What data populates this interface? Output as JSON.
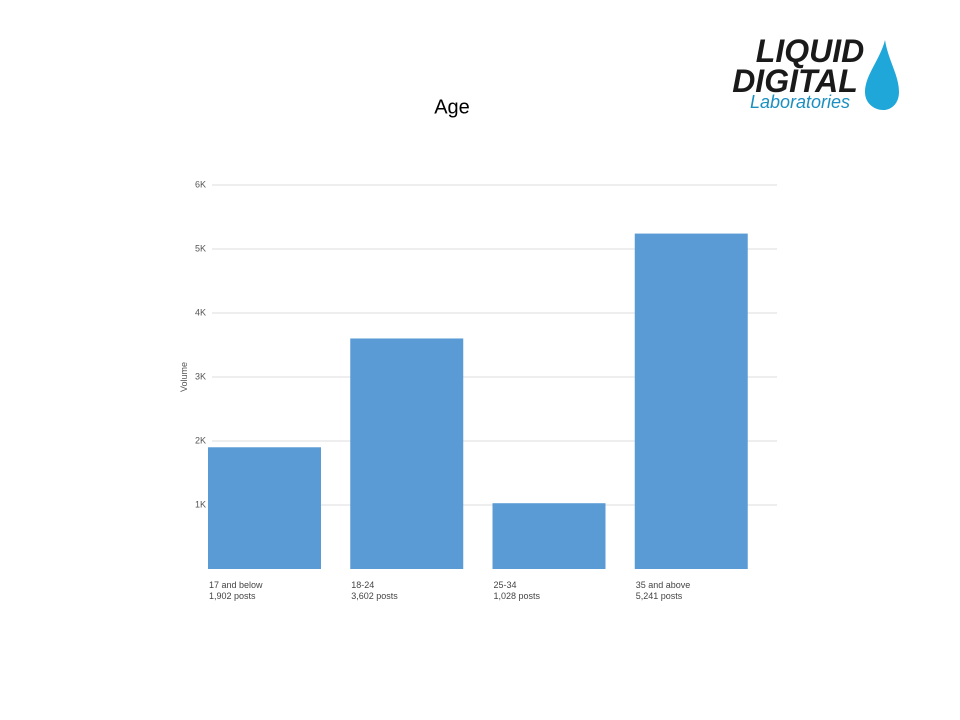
{
  "logo": {
    "line1": "LIQUID",
    "line2": "DIGITAL",
    "line3": "Laboratories"
  },
  "chart_data": {
    "type": "bar",
    "title": "Age",
    "y_label": "Volume",
    "categories": [
      "17 and below",
      "18-24",
      "25-34",
      "35 and above"
    ],
    "values": [
      1902,
      3602,
      1028,
      5241
    ],
    "value_labels": [
      "1,902 posts",
      "3,602 posts",
      "1,028 posts",
      "5,241 posts"
    ],
    "color": "#5b9bd5",
    "ylim": [
      0,
      6000
    ],
    "yticks": [
      {
        "value": 1000,
        "label": "1K"
      },
      {
        "value": 2000,
        "label": "2K"
      },
      {
        "value": 3000,
        "label": "3K"
      },
      {
        "value": 4000,
        "label": "4K"
      },
      {
        "value": 5000,
        "label": "5K"
      },
      {
        "value": 6000,
        "label": "6K"
      }
    ],
    "grid": true
  }
}
